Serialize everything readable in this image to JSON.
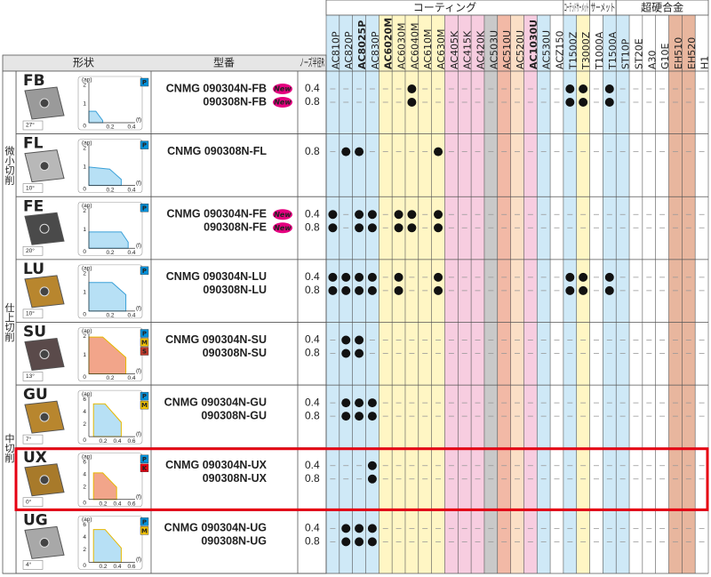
{
  "header": {
    "groups": [
      {
        "label": "コーティング",
        "span": 18
      },
      {
        "label": "コーテッドサーメット",
        "span": 2
      },
      {
        "label": "サーメット",
        "span": 2
      },
      {
        "label": "超硬合金",
        "span": 7
      }
    ],
    "shape": "形状",
    "model": "型番",
    "nose": "ノーズ半径R",
    "grades": [
      {
        "name": "AC810P",
        "color": "#cfe9f7",
        "red": false
      },
      {
        "name": "AC820P",
        "color": "#cfe9f7",
        "red": false
      },
      {
        "name": "AC8025P",
        "color": "#cfe9f7",
        "red": true
      },
      {
        "name": "AC830P",
        "color": "#cfe9f7",
        "red": false
      },
      {
        "name": "AC6020M",
        "color": "#fff6c4",
        "red": true
      },
      {
        "name": "AC6030M",
        "color": "#fff6c4",
        "red": false
      },
      {
        "name": "AC6040M",
        "color": "#fff6c4",
        "red": false
      },
      {
        "name": "AC610M",
        "color": "#fff6c4",
        "red": false
      },
      {
        "name": "AC630M",
        "color": "#fff6c4",
        "red": false
      },
      {
        "name": "AC405K",
        "color": "#f7cde0",
        "red": false
      },
      {
        "name": "AC415K",
        "color": "#f7cde0",
        "red": false
      },
      {
        "name": "AC420K",
        "color": "#f7cde0",
        "red": false
      },
      {
        "name": "AC503U",
        "color": "#c9c9c9",
        "red": false
      },
      {
        "name": "AC510U",
        "color": "#f2b9a6",
        "red": false
      },
      {
        "name": "AC520U",
        "color": "#fbdfc6",
        "red": false
      },
      {
        "name": "AC1030U",
        "color": "#f7cde0",
        "red": true
      },
      {
        "name": "AC530U",
        "color": "#cfe9f7",
        "red": false
      },
      {
        "name": "ACZ150",
        "color": "#ffffff",
        "red": false
      },
      {
        "name": "T1500Z",
        "color": "#cfe9f7",
        "red": false
      },
      {
        "name": "T3000Z",
        "color": "#fff6c4",
        "red": false
      },
      {
        "name": "T1000A",
        "color": "#ffffff",
        "red": false
      },
      {
        "name": "T1500A",
        "color": "#cfe9f7",
        "red": false
      },
      {
        "name": "ST10P",
        "color": "#cfe9f7",
        "red": false
      },
      {
        "name": "ST20E",
        "color": "#ffffff",
        "red": false
      },
      {
        "name": "A30",
        "color": "#ffffff",
        "red": false
      },
      {
        "name": "G10E",
        "color": "#ffffff",
        "red": false
      },
      {
        "name": "EH510",
        "color": "#e8b69e",
        "red": false
      },
      {
        "name": "EH520",
        "color": "#e8b69e",
        "red": false
      },
      {
        "name": "H1",
        "color": "#ffffff",
        "red": false
      }
    ]
  },
  "sections": [
    {
      "label": "微小切削",
      "first": 0,
      "count": 3
    },
    {
      "label": "仕上切削",
      "first": 3,
      "count": 2
    },
    {
      "label": "中切削",
      "first": 5,
      "count": 2
    }
  ],
  "rows": [
    {
      "name": "FB",
      "name_color": "#e4007f",
      "angle": "27°",
      "chart": {
        "y": [
          "2",
          "1"
        ],
        "x": [
          "0.2",
          "0.4"
        ],
        "origin": "0",
        "y_label": "(ap)",
        "x_label": "(f)"
      },
      "badges": [
        "P"
      ],
      "sizes": [
        {
          "model": "CNMG 090304N-FB",
          "nose": 0.4,
          "new": "New",
          "available": [
            6,
            18,
            19,
            21
          ]
        },
        {
          "model": "090308N-FB",
          "nose": 0.8,
          "new": "New",
          "available": [
            6,
            18,
            19,
            21
          ]
        }
      ]
    },
    {
      "name": "FL",
      "name_color": "#222222",
      "angle": "10°",
      "chart": {
        "y": [
          "2",
          "1"
        ],
        "x": [
          "0.2",
          "0.4"
        ],
        "origin": "0",
        "y_label": "(ap)",
        "x_label": "(f)"
      },
      "badges": [
        "P"
      ],
      "sizes": [
        {
          "model": "CNMG 090308N-FL",
          "nose": 0.8,
          "available": [
            1,
            2,
            8
          ]
        }
      ]
    },
    {
      "name": "FE",
      "name_color": "#e4007f",
      "angle": "20°",
      "chart": {
        "y": [
          "2",
          "1"
        ],
        "x": [
          "0.2",
          "0.4"
        ],
        "origin": "0",
        "y_label": "(ap)",
        "x_label": "(f)"
      },
      "badges": [
        "P"
      ],
      "sizes": [
        {
          "model": "CNMG 090304N-FE",
          "nose": 0.4,
          "new": "New",
          "available": [
            0,
            2,
            3,
            5,
            6,
            8
          ]
        },
        {
          "model": "090308N-FE",
          "nose": 0.8,
          "new": "New",
          "available": [
            0,
            2,
            3,
            5,
            6,
            8
          ]
        }
      ]
    },
    {
      "name": "LU",
      "name_color": "#222222",
      "angle": "10°",
      "chart": {
        "y": [
          "2",
          "1"
        ],
        "x": [
          "0.2",
          "0.4"
        ],
        "origin": "0",
        "y_label": "(ap)",
        "x_label": "(f)"
      },
      "badges": [
        "P"
      ],
      "sizes": [
        {
          "model": "CNMG 090304N-LU",
          "nose": 0.4,
          "available": [
            0,
            1,
            2,
            3,
            5,
            8,
            18,
            19,
            21
          ]
        },
        {
          "model": "090308N-LU",
          "nose": 0.8,
          "available": [
            0,
            1,
            2,
            3,
            5,
            8,
            18,
            19,
            21
          ]
        }
      ]
    },
    {
      "name": "SU",
      "name_color": "#222222",
      "angle": "13°",
      "chart": {
        "y": [
          "2",
          "1"
        ],
        "x": [
          "0.2",
          "0.4"
        ],
        "origin": "0",
        "y_label": "(ap)",
        "x_label": "(f)"
      },
      "badges": [
        "P",
        "M",
        "S"
      ],
      "sizes": [
        {
          "model": "CNMG 090304N-SU",
          "nose": 0.4,
          "available": [
            1,
            2
          ]
        },
        {
          "model": "090308N-SU",
          "nose": 0.8,
          "available": [
            1,
            2
          ]
        }
      ]
    },
    {
      "name": "GU",
      "name_color": "#222222",
      "angle": "7°",
      "chart": {
        "y": [
          "6",
          "4",
          "2"
        ],
        "x": [
          "0.2",
          "0.4",
          "0.6"
        ],
        "origin": "0",
        "y_label": "(ap)",
        "x_label": "(f)"
      },
      "badges": [
        "P",
        "M"
      ],
      "sizes": [
        {
          "model": "CNMG 090304N-GU",
          "nose": 0.4,
          "available": [
            1,
            2,
            3
          ]
        },
        {
          "model": "090308N-GU",
          "nose": 0.8,
          "available": [
            1,
            2,
            3
          ]
        }
      ]
    },
    {
      "name": "UX",
      "name_color": "#222222",
      "angle": "0°",
      "highlight": true,
      "chart": {
        "y": [
          "6",
          "4",
          "2"
        ],
        "x": [
          "0.2",
          "0.4",
          "0.6"
        ],
        "origin": "0",
        "y_label": "(ap)",
        "x_label": "(f)"
      },
      "badges": [
        "P",
        "K"
      ],
      "sizes": [
        {
          "model": "CNMG 090304N-UX",
          "nose": 0.4,
          "available": [
            3
          ]
        },
        {
          "model": "090308N-UX",
          "nose": 0.8,
          "available": [
            3
          ]
        }
      ]
    },
    {
      "name": "UG",
      "name_color": "#222222",
      "angle": "4°",
      "chart": {
        "y": [
          "6",
          "4",
          "2"
        ],
        "x": [
          "0.2",
          "0.4",
          "0.6"
        ],
        "origin": "0",
        "y_label": "(ap)",
        "x_label": "(f)"
      },
      "badges": [
        "P",
        "M"
      ],
      "sizes": [
        {
          "model": "CNMG 090304N-UG",
          "nose": 0.4,
          "available": [
            1,
            2,
            3
          ]
        },
        {
          "model": "090308N-UG",
          "nose": 0.8,
          "available": [
            1,
            2,
            3
          ]
        }
      ]
    }
  ]
}
